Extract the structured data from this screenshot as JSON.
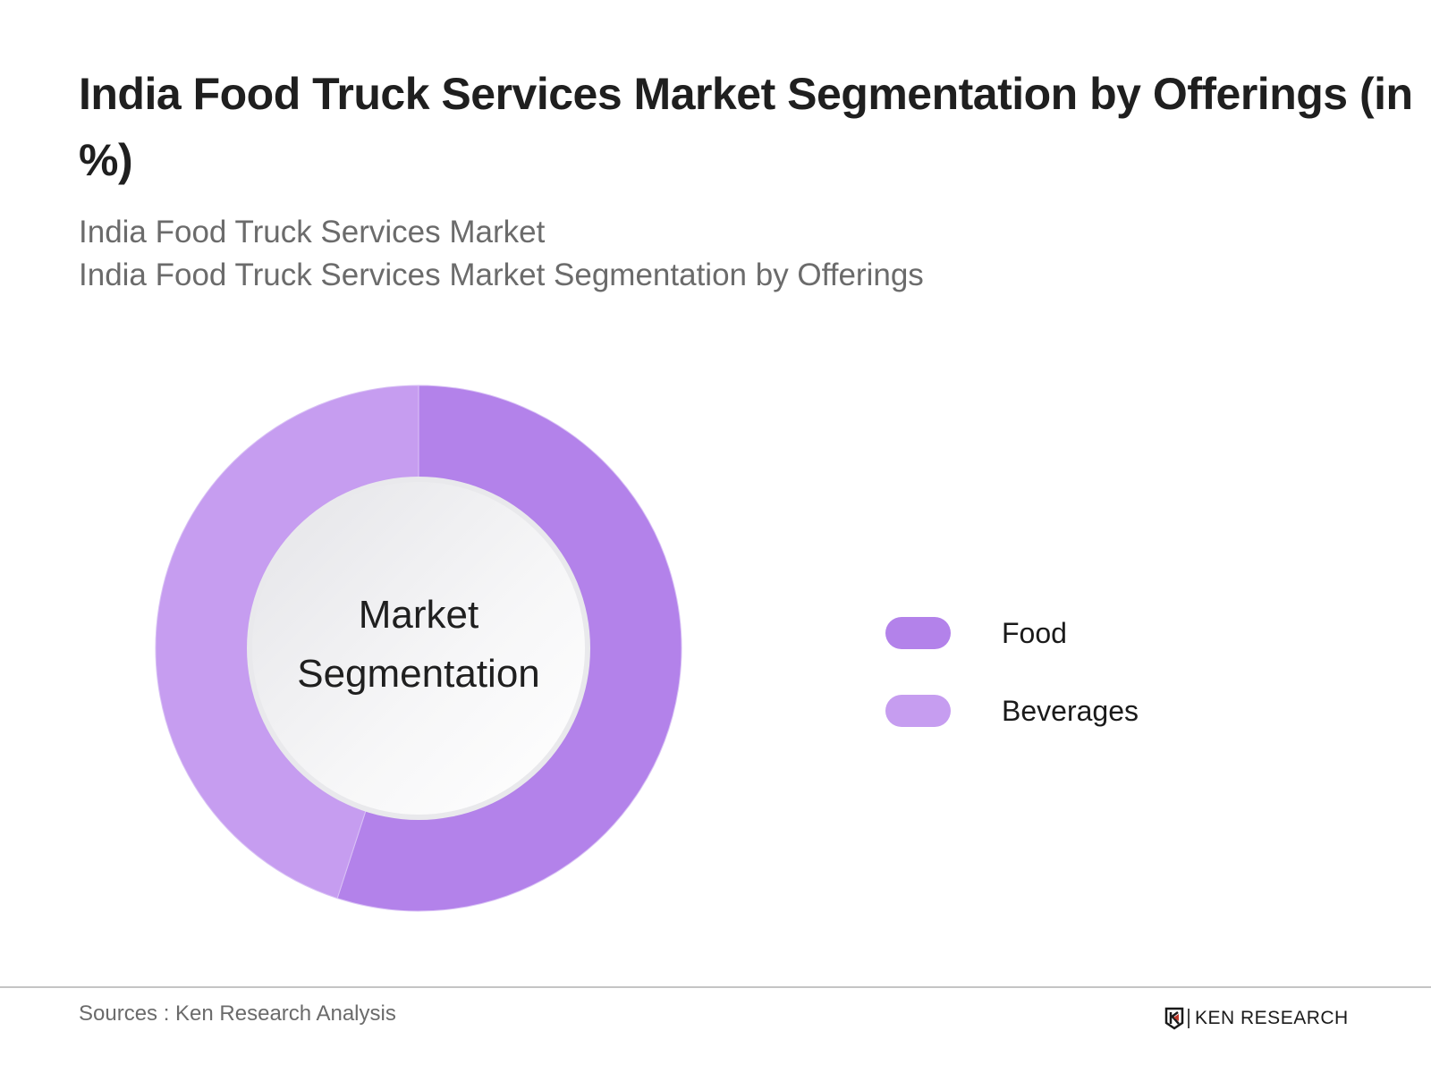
{
  "header": {
    "title": "India Food Truck Services Market Segmentation by Offerings (in %)",
    "subtitle_line1": "India Food Truck Services Market",
    "subtitle_line2": "India Food Truck Services Market Segmentation by Offerings"
  },
  "center_label": {
    "line1": "Market",
    "line2": "Segmentation"
  },
  "legend": [
    {
      "label": "Food",
      "color": "#b382ea"
    },
    {
      "label": "Beverages",
      "color": "#c69df0"
    }
  ],
  "footer": {
    "source": "Sources : Ken Research Analysis",
    "brand": "KEN RESEARCH"
  },
  "chart_data": {
    "type": "pie",
    "variant": "donut",
    "title": "India Food Truck Services Market Segmentation by Offerings (in %)",
    "subtitle": [
      "India Food Truck Services Market",
      "India Food Truck Services Market Segmentation by Offerings"
    ],
    "categories": [
      "Food",
      "Beverages"
    ],
    "values": [
      55,
      45
    ],
    "colors": [
      "#b382ea",
      "#c69df0"
    ],
    "center_text": "Market Segmentation",
    "legend_position": "right",
    "data_labels": false,
    "source": "Sources : Ken Research Analysis"
  }
}
